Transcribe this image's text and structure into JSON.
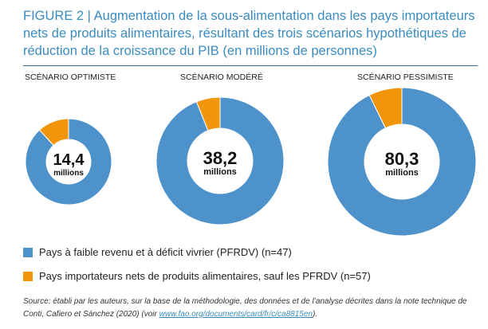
{
  "title": "FIGURE 2 | Augmentation de la sous-alimentation dans les pays importateurs nets de produits alimentaires, résultant des trois scénarios hypothétiques de réduction de la croissance du PIB (en millions de personnes)",
  "colors": {
    "pfrdv": "#4e92cb",
    "other": "#f0950c",
    "title": "#3a8cc0"
  },
  "chart_data": {
    "type": "pie",
    "variant": "donut",
    "title": "Augmentation de la sous-alimentation dans les pays importateurs nets de produits alimentaires, résultant des trois scénarios hypothétiques de réduction de la croissance du PIB (en millions de personnes)",
    "legend": [
      "Pays à faible revenu et à déficit vivrier (PFRDV) (n=47)",
      "Pays importateurs nets de produits alimentaires, sauf les PFRDV (n=57)"
    ],
    "legend_placement": "bottom-left",
    "charts": [
      {
        "label": "SCÉNARIO OPTIMISTE",
        "total": "14,4",
        "unit": "millions",
        "values": [
          12.7,
          1.7
        ]
      },
      {
        "label": "SCÉNARIO MODÉRÉ",
        "total": "38,2",
        "unit": "millions",
        "values": [
          35.9,
          2.3
        ]
      },
      {
        "label": "SCÉNARIO PESSIMISTE",
        "total": "80,3",
        "unit": "millions",
        "values": [
          74.5,
          5.8
        ]
      }
    ]
  },
  "source": {
    "text": "Source: établi par les auteurs, sur la base de la méthodologie, des données et de l’analyse décrites dans la note technique de Conti, Cafiero et Sánchez (2020) (voir ",
    "link": "www.fao.org/documents/card/fr/c/ca8815en",
    "end": ")."
  }
}
